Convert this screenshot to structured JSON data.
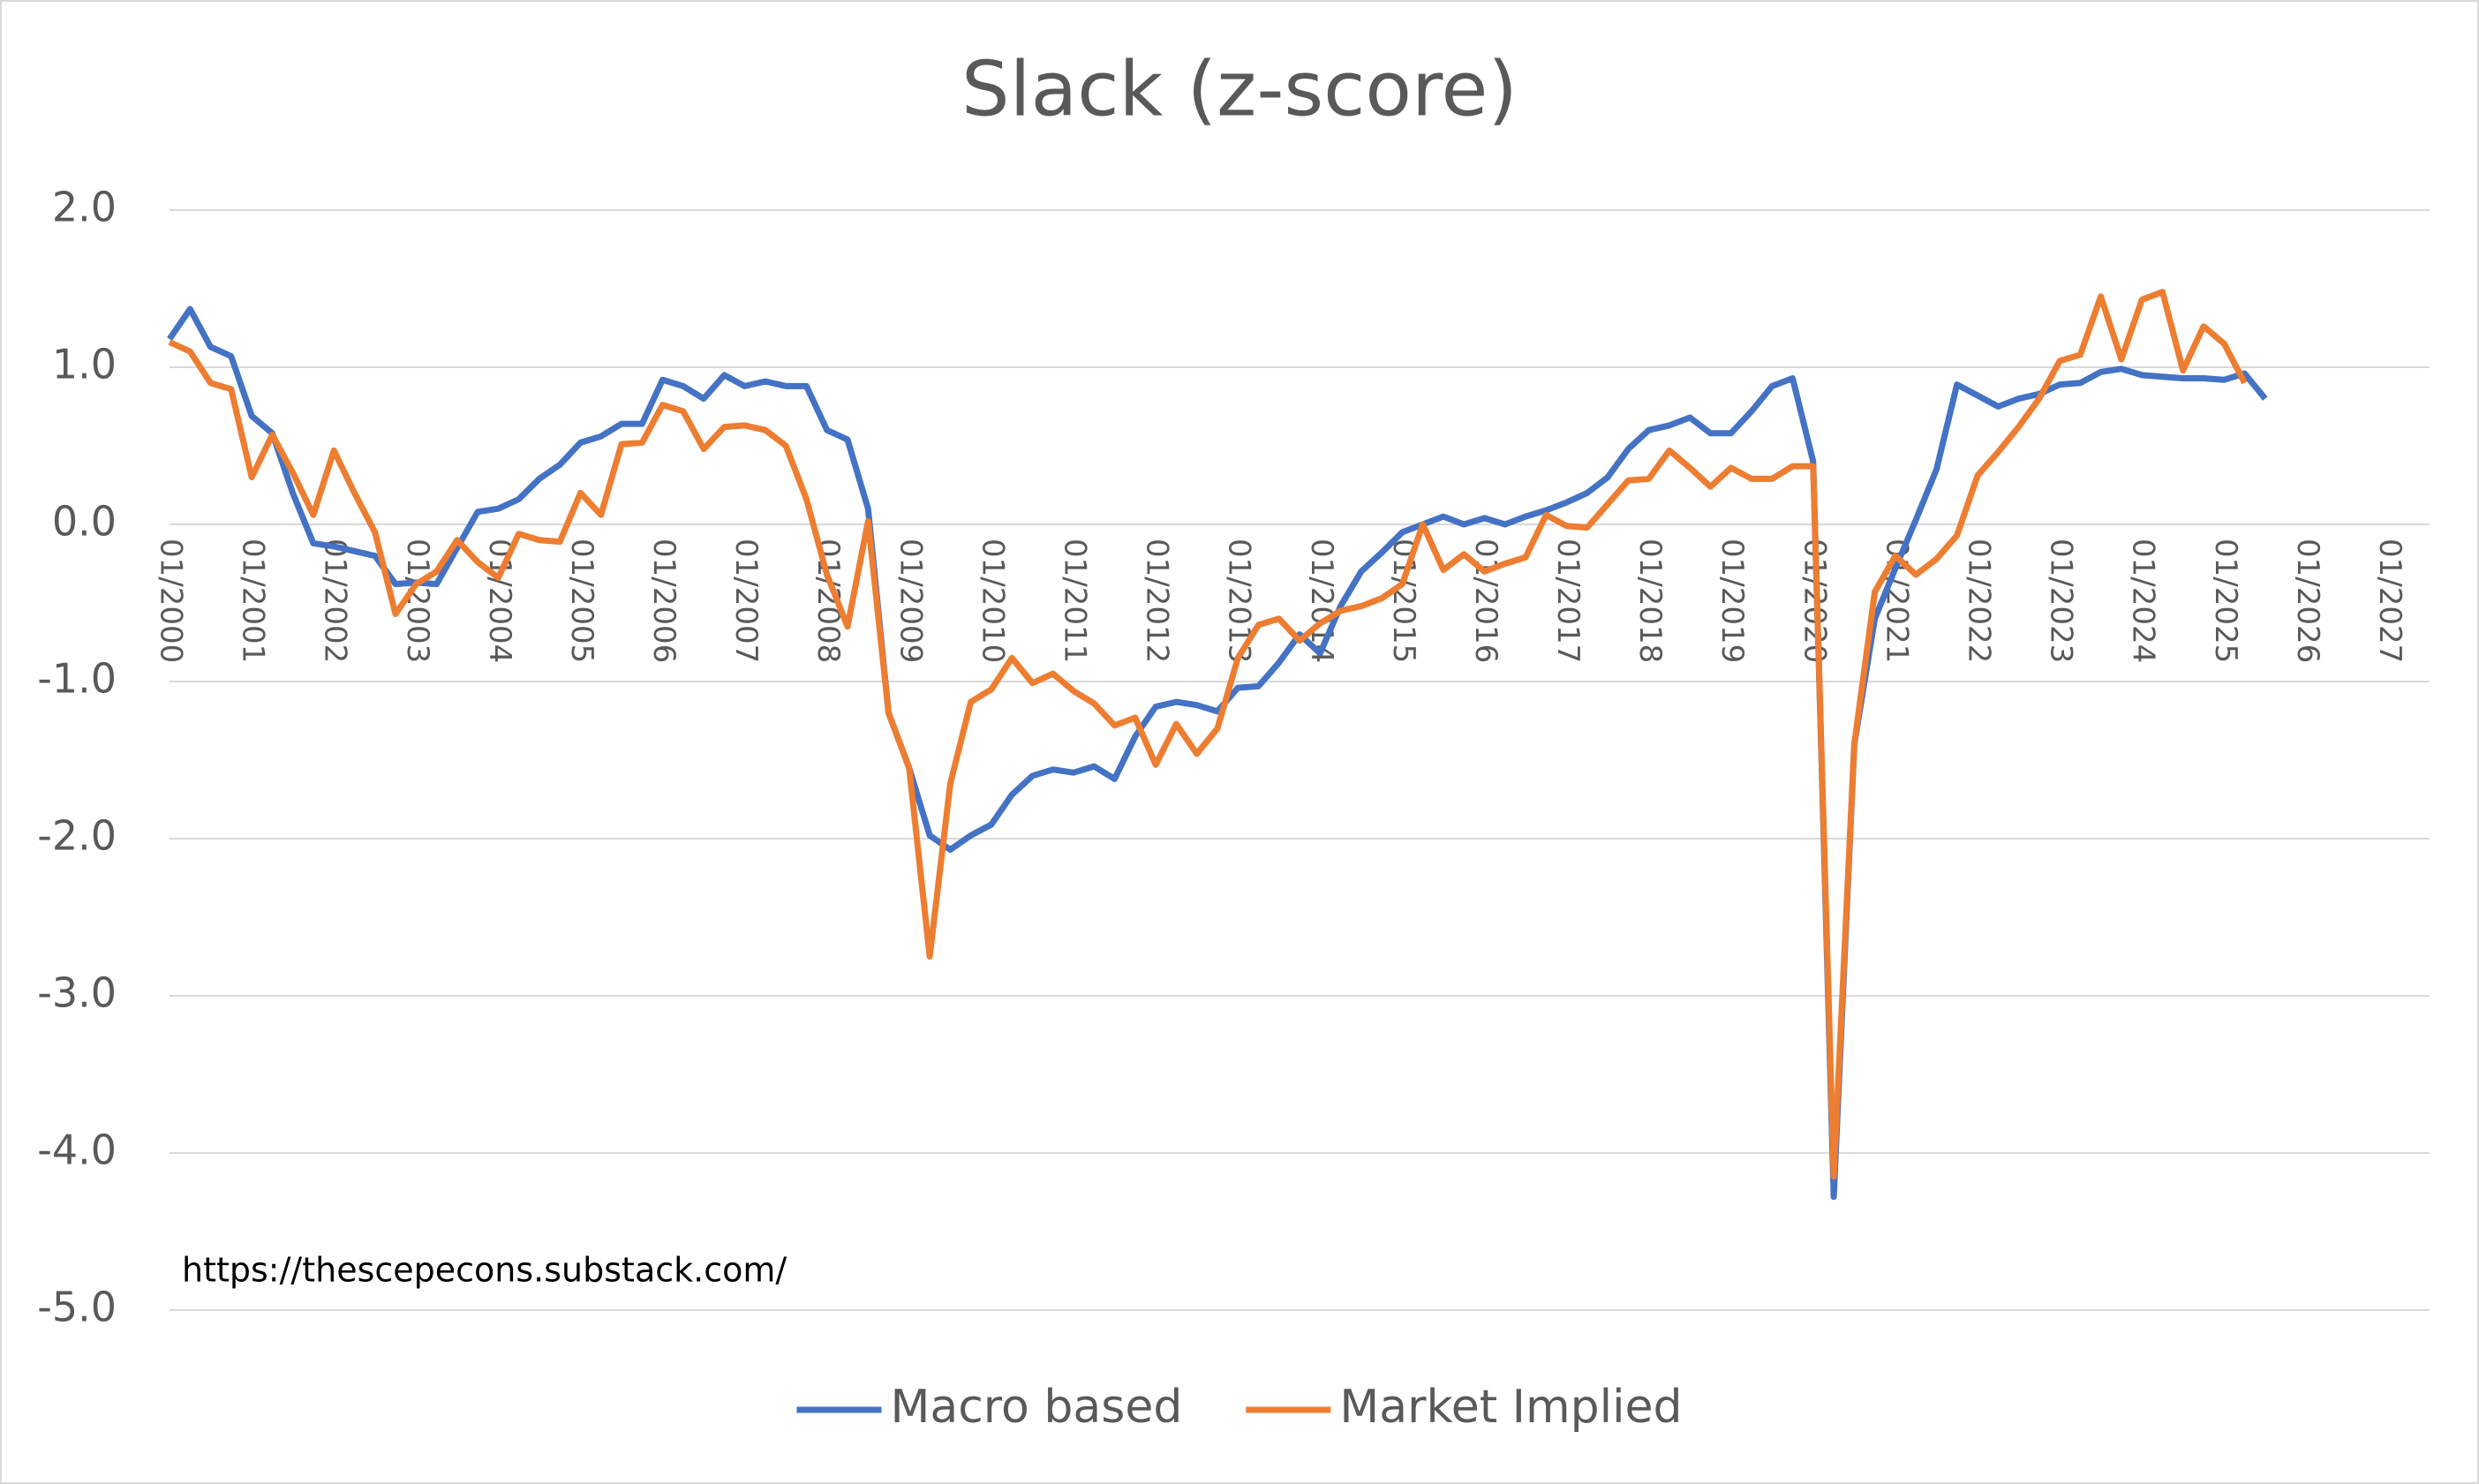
{
  "chart_data": {
    "type": "line",
    "title": "Slack (z-score)",
    "annotation": "https://thescepecons.substack.com/",
    "x": [
      "01/2000",
      "04/2000",
      "07/2000",
      "10/2000",
      "01/2001",
      "04/2001",
      "07/2001",
      "10/2001",
      "01/2002",
      "04/2002",
      "07/2002",
      "10/2002",
      "01/2003",
      "04/2003",
      "07/2003",
      "10/2003",
      "01/2004",
      "04/2004",
      "07/2004",
      "10/2004",
      "01/2005",
      "04/2005",
      "07/2005",
      "10/2005",
      "01/2006",
      "04/2006",
      "07/2006",
      "10/2006",
      "01/2007",
      "04/2007",
      "07/2007",
      "10/2007",
      "01/2008",
      "04/2008",
      "07/2008",
      "10/2008",
      "01/2009",
      "04/2009",
      "07/2009",
      "10/2009",
      "01/2010",
      "04/2010",
      "07/2010",
      "10/2010",
      "01/2011",
      "04/2011",
      "07/2011",
      "10/2011",
      "01/2012",
      "04/2012",
      "07/2012",
      "10/2012",
      "01/2013",
      "04/2013",
      "07/2013",
      "10/2013",
      "01/2014",
      "04/2014",
      "07/2014",
      "10/2014",
      "01/2015",
      "04/2015",
      "07/2015",
      "10/2015",
      "01/2016",
      "04/2016",
      "07/2016",
      "10/2016",
      "01/2017",
      "04/2017",
      "07/2017",
      "10/2017",
      "01/2018",
      "04/2018",
      "07/2018",
      "10/2018",
      "01/2019",
      "04/2019",
      "07/2019",
      "10/2019",
      "01/2020",
      "04/2020",
      "07/2020",
      "10/2020",
      "01/2021",
      "04/2021",
      "07/2021",
      "10/2021",
      "01/2022",
      "04/2022",
      "07/2022",
      "10/2022",
      "01/2023",
      "04/2023",
      "07/2023",
      "10/2023",
      "01/2024",
      "04/2024",
      "07/2024",
      "10/2024",
      "01/2025",
      "04/2025",
      "07/2025"
    ],
    "series": [
      {
        "name": "Macro based",
        "color": "#4472c4",
        "values": [
          1.18,
          1.37,
          1.13,
          1.07,
          0.69,
          0.58,
          0.2,
          -0.12,
          -0.14,
          -0.17,
          -0.2,
          -0.38,
          -0.37,
          -0.38,
          -0.15,
          0.08,
          0.1,
          0.16,
          0.29,
          0.38,
          0.52,
          0.56,
          0.64,
          0.64,
          0.92,
          0.88,
          0.8,
          0.95,
          0.88,
          0.91,
          0.88,
          0.88,
          0.6,
          0.54,
          0.1,
          -1.2,
          -1.55,
          -1.98,
          -2.07,
          -1.98,
          -1.91,
          -1.72,
          -1.6,
          -1.56,
          -1.58,
          -1.54,
          -1.62,
          -1.35,
          -1.16,
          -1.13,
          -1.15,
          -1.19,
          -1.04,
          -1.03,
          -0.88,
          -0.7,
          -0.82,
          -0.52,
          -0.3,
          -0.18,
          -0.05,
          0.0,
          0.05,
          0.0,
          0.04,
          0.0,
          0.05,
          0.09,
          0.14,
          0.2,
          0.3,
          0.48,
          0.6,
          0.63,
          0.68,
          0.58,
          0.58,
          0.72,
          0.88,
          0.93,
          0.4,
          -4.28,
          -1.4,
          -0.6,
          -0.28,
          0.03,
          0.35,
          0.89,
          0.82,
          0.75,
          0.8,
          0.83,
          0.89,
          0.9,
          0.97,
          0.99,
          0.95,
          0.94,
          0.93,
          0.93,
          0.92,
          0.96,
          0.8
        ]
      },
      {
        "name": "Market Implied",
        "color": "#ed7d31",
        "values": [
          1.16,
          1.1,
          0.9,
          0.86,
          0.3,
          0.57,
          0.33,
          0.06,
          0.47,
          0.2,
          -0.05,
          -0.57,
          -0.38,
          -0.3,
          -0.1,
          -0.24,
          -0.34,
          -0.06,
          -0.1,
          -0.11,
          0.2,
          0.06,
          0.51,
          0.52,
          0.76,
          0.72,
          0.48,
          0.62,
          0.63,
          0.6,
          0.5,
          0.16,
          -0.32,
          -0.65,
          0.02,
          -1.2,
          -1.55,
          -2.75,
          -1.65,
          -1.13,
          -1.05,
          -0.85,
          -1.01,
          -0.95,
          -1.06,
          -1.14,
          -1.28,
          -1.23,
          -1.53,
          -1.27,
          -1.46,
          -1.3,
          -0.85,
          -0.64,
          -0.6,
          -0.74,
          -0.63,
          -0.55,
          -0.52,
          -0.47,
          -0.38,
          0.0,
          -0.29,
          -0.19,
          -0.3,
          -0.25,
          -0.21,
          0.06,
          -0.01,
          -0.02,
          0.13,
          0.28,
          0.29,
          0.47,
          0.36,
          0.24,
          0.36,
          0.29,
          0.29,
          0.37,
          0.37,
          -4.15,
          -1.4,
          -0.43,
          -0.2,
          -0.32,
          -0.22,
          -0.07,
          0.31,
          0.46,
          0.62,
          0.8,
          1.04,
          1.08,
          1.45,
          1.05,
          1.43,
          1.48,
          0.98,
          1.26,
          1.15,
          0.9,
          null
        ]
      }
    ],
    "xlim": [
      "01/2000",
      "07/2027"
    ],
    "xticks": [
      "01/2000",
      "01/2001",
      "01/2002",
      "01/2003",
      "01/2004",
      "01/2005",
      "01/2006",
      "01/2007",
      "01/2008",
      "01/2009",
      "01/2010",
      "01/2011",
      "01/2012",
      "01/2013",
      "01/2014",
      "01/2015",
      "01/2016",
      "01/2017",
      "01/2018",
      "01/2019",
      "01/2020",
      "01/2021",
      "01/2022",
      "01/2023",
      "01/2024",
      "01/2025",
      "01/2026",
      "01/2027"
    ],
    "ylim": [
      -5,
      2
    ],
    "yticks": [
      {
        "value": 2,
        "label": "2.0"
      },
      {
        "value": 1,
        "label": "1.0"
      },
      {
        "value": 0,
        "label": "0.0"
      },
      {
        "value": -1,
        "label": "-1.0"
      },
      {
        "value": -2,
        "label": "-2.0"
      },
      {
        "value": -3,
        "label": "-3.0"
      },
      {
        "value": -4,
        "label": "-4.0"
      },
      {
        "value": -5,
        "label": "-5.0"
      }
    ],
    "grid": true,
    "legend": "bottom"
  }
}
